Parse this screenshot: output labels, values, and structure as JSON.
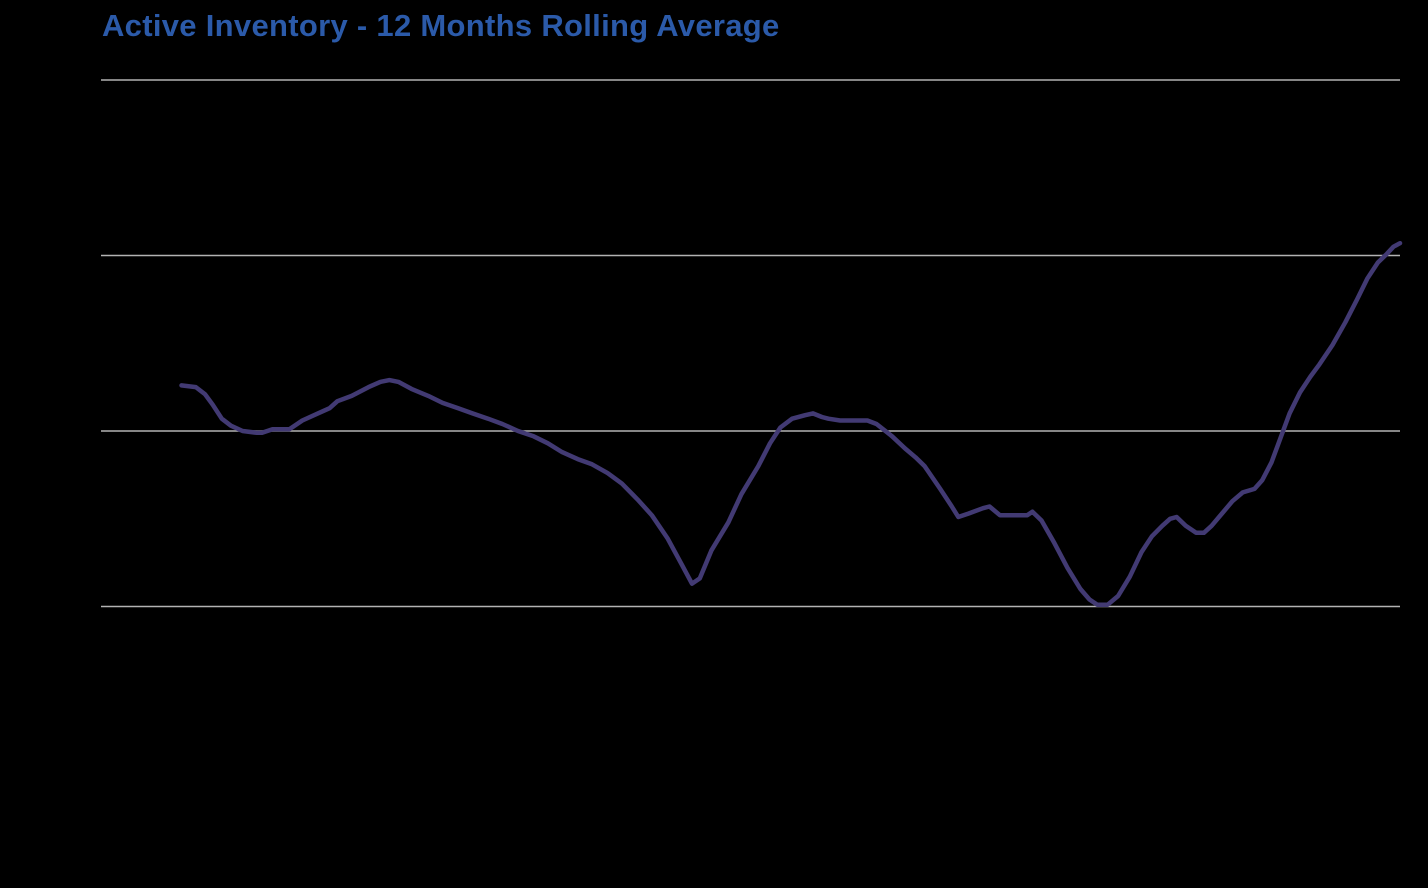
{
  "page": {
    "background_color": "#000000"
  },
  "header": {
    "title": "Active Inventory - 12 Months Rolling Average",
    "title_color": "#2b5aa9"
  },
  "chart_data": {
    "type": "line",
    "title": "Active Inventory - 12 Months Rolling Average",
    "xlabel": "",
    "ylabel": "",
    "legend": "none",
    "grid": "horizontal",
    "x_axis": {
      "tick_labels_visible": false,
      "range_fraction": [
        0,
        1
      ]
    },
    "y_axis": {
      "tick_labels_visible": false,
      "units": "gridline-intervals",
      "range": [
        0,
        3
      ],
      "gridline_values": [
        0,
        1,
        2,
        3
      ]
    },
    "line_color": "#423a73",
    "gridline_color": "#b3b3b3",
    "series": [
      {
        "name": "Active Inventory (12-month rolling average)",
        "points": [
          [
            0.062,
            1.26
          ],
          [
            0.073,
            1.25
          ],
          [
            0.08,
            1.21
          ],
          [
            0.086,
            1.15
          ],
          [
            0.093,
            1.07
          ],
          [
            0.1,
            1.03
          ],
          [
            0.109,
            1.0
          ],
          [
            0.12,
            0.99
          ],
          [
            0.124,
            0.99
          ],
          [
            0.132,
            1.01
          ],
          [
            0.145,
            1.01
          ],
          [
            0.155,
            1.06
          ],
          [
            0.167,
            1.1
          ],
          [
            0.176,
            1.13
          ],
          [
            0.182,
            1.17
          ],
          [
            0.193,
            1.2
          ],
          [
            0.206,
            1.25
          ],
          [
            0.215,
            1.28
          ],
          [
            0.222,
            1.29
          ],
          [
            0.229,
            1.28
          ],
          [
            0.239,
            1.24
          ],
          [
            0.252,
            1.2
          ],
          [
            0.263,
            1.16
          ],
          [
            0.275,
            1.13
          ],
          [
            0.286,
            1.1
          ],
          [
            0.298,
            1.07
          ],
          [
            0.309,
            1.04
          ],
          [
            0.321,
            1.0
          ],
          [
            0.333,
            0.97
          ],
          [
            0.344,
            0.93
          ],
          [
            0.355,
            0.88
          ],
          [
            0.367,
            0.84
          ],
          [
            0.378,
            0.81
          ],
          [
            0.39,
            0.76
          ],
          [
            0.401,
            0.7
          ],
          [
            0.413,
            0.61
          ],
          [
            0.424,
            0.52
          ],
          [
            0.436,
            0.39
          ],
          [
            0.447,
            0.24
          ],
          [
            0.455,
            0.13
          ],
          [
            0.461,
            0.16
          ],
          [
            0.47,
            0.32
          ],
          [
            0.483,
            0.48
          ],
          [
            0.493,
            0.64
          ],
          [
            0.506,
            0.8
          ],
          [
            0.515,
            0.93
          ],
          [
            0.523,
            1.02
          ],
          [
            0.532,
            1.07
          ],
          [
            0.542,
            1.09
          ],
          [
            0.548,
            1.1
          ],
          [
            0.555,
            1.08
          ],
          [
            0.56,
            1.07
          ],
          [
            0.569,
            1.06
          ],
          [
            0.58,
            1.06
          ],
          [
            0.59,
            1.06
          ],
          [
            0.597,
            1.04
          ],
          [
            0.609,
            0.97
          ],
          [
            0.619,
            0.9
          ],
          [
            0.627,
            0.85
          ],
          [
            0.634,
            0.8
          ],
          [
            0.646,
            0.67
          ],
          [
            0.655,
            0.57
          ],
          [
            0.66,
            0.51
          ],
          [
            0.668,
            0.53
          ],
          [
            0.679,
            0.56
          ],
          [
            0.684,
            0.57
          ],
          [
            0.692,
            0.52
          ],
          [
            0.713,
            0.52
          ],
          [
            0.717,
            0.54
          ],
          [
            0.724,
            0.49
          ],
          [
            0.734,
            0.36
          ],
          [
            0.744,
            0.22
          ],
          [
            0.754,
            0.1
          ],
          [
            0.761,
            0.04
          ],
          [
            0.767,
            0.01
          ],
          [
            0.775,
            0.01
          ],
          [
            0.783,
            0.06
          ],
          [
            0.792,
            0.17
          ],
          [
            0.801,
            0.31
          ],
          [
            0.809,
            0.4
          ],
          [
            0.817,
            0.46
          ],
          [
            0.823,
            0.5
          ],
          [
            0.828,
            0.51
          ],
          [
            0.835,
            0.46
          ],
          [
            0.843,
            0.42
          ],
          [
            0.849,
            0.42
          ],
          [
            0.855,
            0.46
          ],
          [
            0.863,
            0.53
          ],
          [
            0.871,
            0.6
          ],
          [
            0.879,
            0.65
          ],
          [
            0.888,
            0.67
          ],
          [
            0.894,
            0.72
          ],
          [
            0.901,
            0.82
          ],
          [
            0.908,
            0.96
          ],
          [
            0.915,
            1.1
          ],
          [
            0.923,
            1.22
          ],
          [
            0.931,
            1.31
          ],
          [
            0.938,
            1.38
          ],
          [
            0.948,
            1.49
          ],
          [
            0.958,
            1.62
          ],
          [
            0.967,
            1.75
          ],
          [
            0.975,
            1.87
          ],
          [
            0.983,
            1.96
          ],
          [
            0.99,
            2.01
          ],
          [
            0.995,
            2.05
          ],
          [
            1.0,
            2.07
          ]
        ]
      }
    ]
  }
}
